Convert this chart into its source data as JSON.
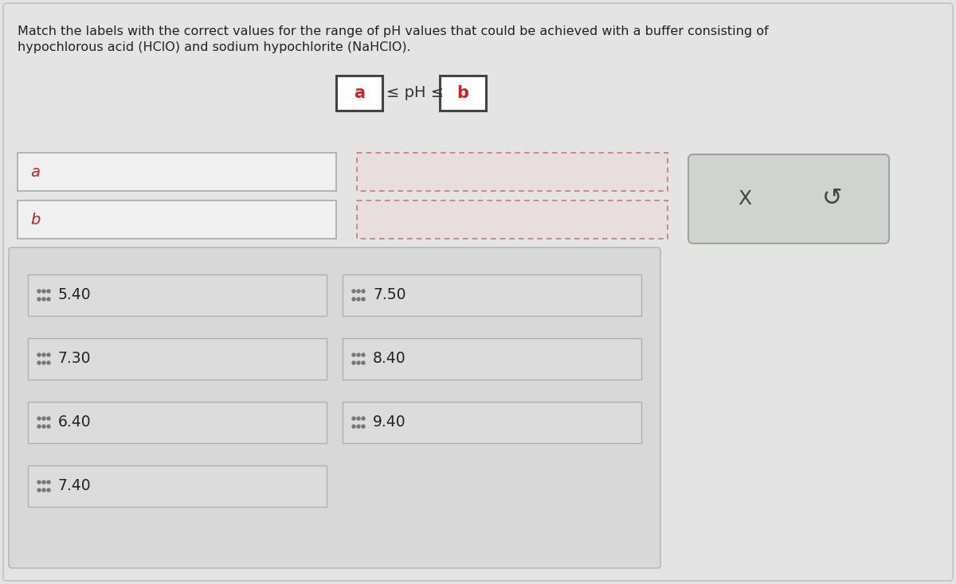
{
  "bg_color": "#e4e4e4",
  "outer_border_color": "#c8c8c8",
  "title_line1": "Match the labels with the correct values for the range of pH values that could be achieved with a buffer consisting of",
  "title_line2": "hypochlorous acid (HClO) and sodium hypochlorite (NaHClO).",
  "title_fontsize": 11.5,
  "options_left": [
    "5.40",
    "7.30",
    "6.40",
    "7.40"
  ],
  "options_right": [
    "7.50",
    "8.40",
    "9.40"
  ],
  "red_text": "#cc2222",
  "dark_text": "#333333",
  "label_red": "#bb2222",
  "box_bg": "#f0f0f0",
  "box_border": "#aaaaaa",
  "dashed_box_bg": "#e8dede",
  "dashed_box_border": "#cc7777",
  "option_bg": "#dcdcdc",
  "option_border": "#b0b0b0",
  "btn_bg": "#d0d4d0",
  "btn_border": "#9aaa9a",
  "inner_panel_bg": "#d8d8d8",
  "inner_panel_border": "#b8b8b8",
  "formula_box_border": "#444444",
  "formula_box_bg": "#ffffff"
}
